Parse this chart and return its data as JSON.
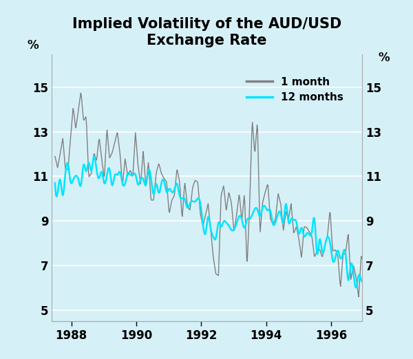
{
  "title": "Implied Volatility of the AUD/USD\nExchange Rate",
  "title_fontsize": 15,
  "ylabel_left": "%",
  "ylabel_right": "%",
  "yticks": [
    5,
    7,
    9,
    11,
    13,
    15
  ],
  "ylim": [
    4.5,
    16.5
  ],
  "xticks": [
    1988,
    1990,
    1992,
    1994,
    1996
  ],
  "xlim_start": 1987.4,
  "xlim_end": 1996.95,
  "background_color": "#d6f0f7",
  "plot_bg_color": "#d6f0f7",
  "grid_color": "#ffffff",
  "color_1month": "#808080",
  "color_12month": "#00e5ff",
  "lw_1month": 1.0,
  "lw_12month": 1.8,
  "legend_labels": [
    "1 month",
    "12 months"
  ],
  "legend_fontsize": 11
}
